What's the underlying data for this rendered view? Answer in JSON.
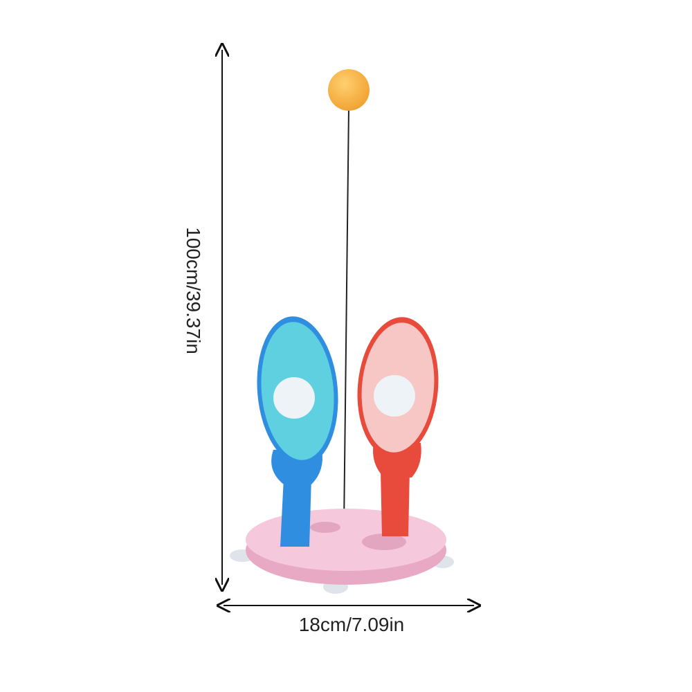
{
  "dimensions": {
    "height": "100cm/39.37in",
    "width": "18cm/7.09in"
  }
}
